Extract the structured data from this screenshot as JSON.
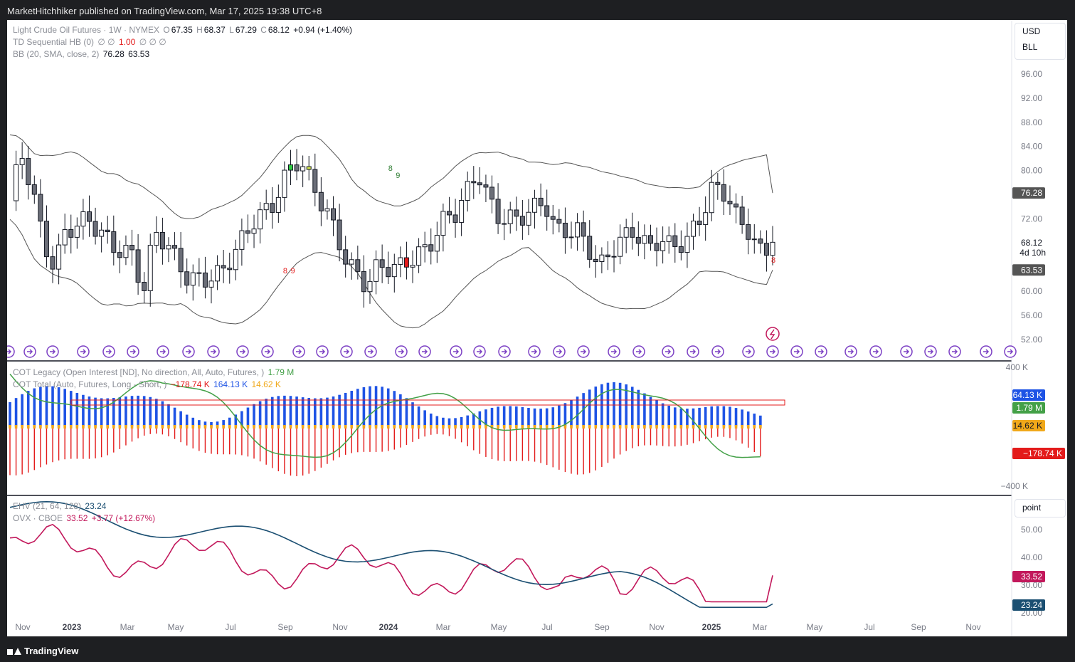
{
  "header": {
    "publisher": "MarketHitchhiker published on TradingView.com, Mar 17, 2025 19:38 UTC+8"
  },
  "footer": {
    "brand": "TradingView"
  },
  "main_legend": {
    "symbol": "Light Crude Oil Futures · 1W · NYMEX",
    "o_label": "O",
    "o": "67.35",
    "h_label": "H",
    "h": "68.37",
    "l_label": "L",
    "l": "67.29",
    "c_label": "C",
    "c": "68.12",
    "change": "+0.94 (+1.40%)",
    "td_label": "TD Sequential HB (0)",
    "td_empty": "∅ ∅",
    "td_value": "1.00",
    "td_tail": "∅ ∅ ∅",
    "bb_label": "BB (20, SMA, close, 2)",
    "bb_upper": "76.28",
    "bb_lower": "63.53"
  },
  "unit_box": {
    "currency": "USD",
    "unit": "BLL",
    "point": "point"
  },
  "price_axis": {
    "ticks": [
      "96.00",
      "92.00",
      "88.00",
      "84.00",
      "80.00",
      "72.00",
      "60.00",
      "56.00",
      "52.00"
    ],
    "current_price": "68.12",
    "countdown": "4d 10h",
    "upper_label": "76.28",
    "lower_label": "63.53"
  },
  "cot_legend": {
    "legacy": "COT Legacy (Open Interest [ND], No direction, All, Auto, Futures, )",
    "legacy_value": "1.79 M",
    "total": "COT Total (Auto, Futures, Long - Short, )",
    "total_short": "−178.74 K",
    "total_long": "164.13 K",
    "total_net": "14.62 K"
  },
  "cot_axis": {
    "top": "400 K",
    "bottom": "−400 K",
    "long": "164.13 K",
    "oi": "1.79 M",
    "net": "14.62 K",
    "short": "−178.74 K"
  },
  "vol_legend": {
    "ehv": "EHV (21, 64, 128)",
    "ehv_value": "23.24",
    "ovx": "OVX · CBOE",
    "ovx_value": "33.52",
    "ovx_change": "+3.77 (+12.67%)"
  },
  "vol_axis": {
    "ticks": [
      "50.00",
      "40.00",
      "30.00",
      "20.00"
    ],
    "ovx_label": "33.52",
    "ehv_label": "23.24"
  },
  "td_marks": {
    "buy_8": "8",
    "buy_9": "9",
    "sell_8": "8",
    "sell_9": "9",
    "last_8": "8"
  },
  "time_axis": [
    "Nov",
    "2023",
    "Mar",
    "May",
    "Jul",
    "Sep",
    "Nov",
    "2024",
    "Mar",
    "May",
    "Jul",
    "Sep",
    "Nov",
    "2025",
    "Mar",
    "May",
    "Jul",
    "Sep",
    "Nov"
  ],
  "colors": {
    "up": "#ffffff",
    "down": "#6b6e78",
    "bb": "#555555",
    "cot_long": "#1e53e5",
    "cot_short": "#e31b1b",
    "cot_net": "#f0a81a",
    "cot_oi": "#43a047",
    "ovx": "#c2185b",
    "ehv": "#1b4f72"
  }
}
